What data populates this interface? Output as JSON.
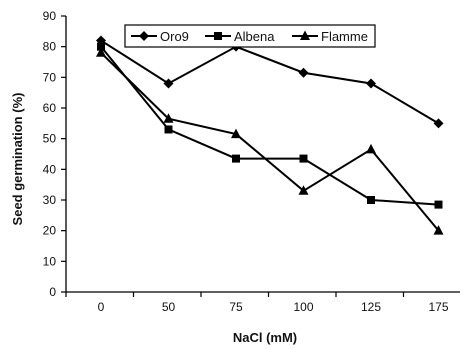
{
  "chart_data": {
    "type": "line",
    "x": [
      "0",
      "50",
      "75",
      "100",
      "125",
      "175"
    ],
    "series": [
      {
        "name": "Oro9",
        "marker": "diamond",
        "values": [
          82,
          68,
          80,
          71.5,
          68,
          55
        ]
      },
      {
        "name": "Albena",
        "marker": "square",
        "values": [
          80,
          53,
          43.5,
          43.5,
          30,
          28.5
        ]
      },
      {
        "name": "Flamme",
        "marker": "triangle",
        "values": [
          78,
          56.5,
          51.5,
          33,
          46.5,
          20
        ]
      }
    ],
    "xlabel": "NaCl (mM)",
    "ylabel": "Seed germination (%)",
    "ylim": [
      0,
      90
    ],
    "yticks": [
      0,
      10,
      20,
      30,
      40,
      50,
      60,
      70,
      80,
      90
    ],
    "grid": false,
    "legend_position": "top-center",
    "line_color": "#000000"
  }
}
